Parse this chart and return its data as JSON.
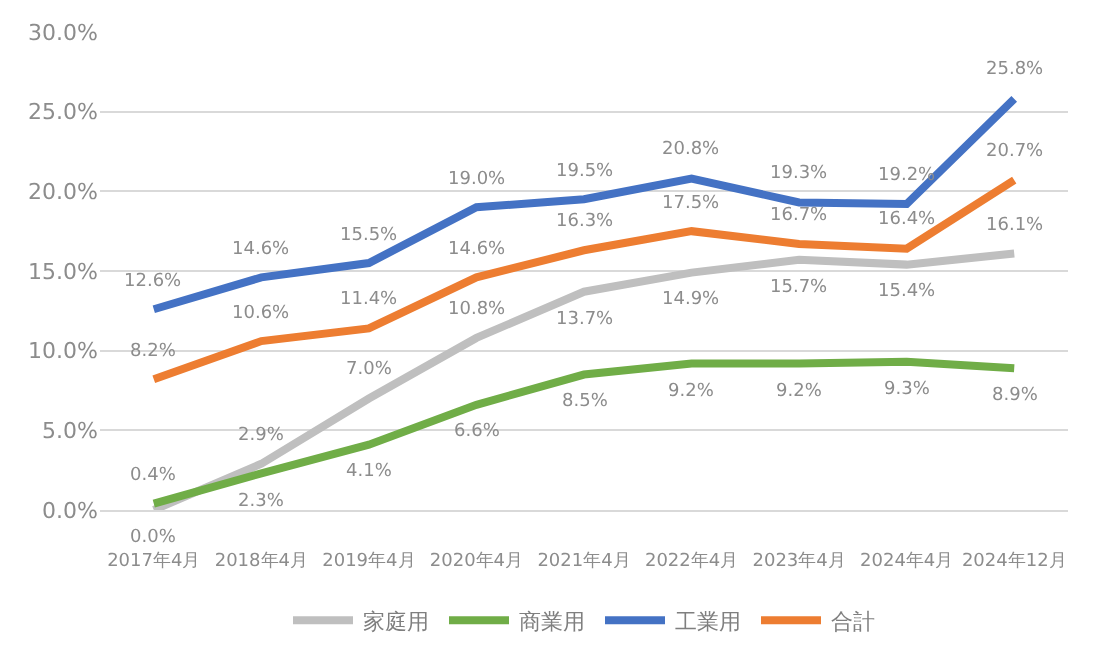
{
  "chart_data": {
    "type": "line",
    "categories": [
      "2017年4月",
      "2018年4月",
      "2019年4月",
      "2020年4月",
      "2021年4月",
      "2022年4月",
      "2023年4月",
      "2024年4月",
      "2024年12月"
    ],
    "series": [
      {
        "name": "家庭用",
        "color": "#bfbfbf",
        "values": [
          0.0,
          2.9,
          7.0,
          10.8,
          13.7,
          14.9,
          15.7,
          15.4,
          16.1
        ],
        "value_labels": [
          "0.0%",
          "2.9%",
          "7.0%",
          "10.8%",
          "13.7%",
          "14.9%",
          "15.7%",
          "15.4%",
          "16.1%"
        ]
      },
      {
        "name": "商業用",
        "color": "#70ad47",
        "values": [
          0.4,
          2.3,
          4.1,
          6.6,
          8.5,
          9.2,
          9.2,
          9.3,
          8.9
        ],
        "value_labels": [
          "0.4%",
          "2.3%",
          "4.1%",
          "6.6%",
          "8.5%",
          "9.2%",
          "9.2%",
          "9.3%",
          "8.9%"
        ]
      },
      {
        "name": "工業用",
        "color": "#4472c4",
        "values": [
          12.6,
          14.6,
          15.5,
          19.0,
          19.5,
          20.8,
          19.3,
          19.2,
          25.8
        ],
        "value_labels": [
          "12.6%",
          "14.6%",
          "15.5%",
          "19.0%",
          "19.5%",
          "20.8%",
          "19.3%",
          "19.2%",
          "25.8%"
        ]
      },
      {
        "name": "合計",
        "color": "#ed7d31",
        "values": [
          8.2,
          10.6,
          11.4,
          14.6,
          16.3,
          17.5,
          16.7,
          16.4,
          20.7
        ],
        "value_labels": [
          "8.2%",
          "10.6%",
          "11.4%",
          "14.6%",
          "16.3%",
          "17.5%",
          "16.7%",
          "16.4%",
          "20.7%"
        ]
      }
    ],
    "ylim": [
      0,
      30
    ],
    "yticks": [
      {
        "value": 0,
        "label": "0.0%"
      },
      {
        "value": 5,
        "label": "5.0%"
      },
      {
        "value": 10,
        "label": "10.0%"
      },
      {
        "value": 15,
        "label": "15.0%"
      },
      {
        "value": 20,
        "label": "20.0%"
      },
      {
        "value": 25,
        "label": "25.0%"
      },
      {
        "value": 30,
        "label": "30.0%"
      }
    ],
    "grid": "y",
    "legend": "bottom",
    "marker": "none",
    "line_style": "solid"
  }
}
